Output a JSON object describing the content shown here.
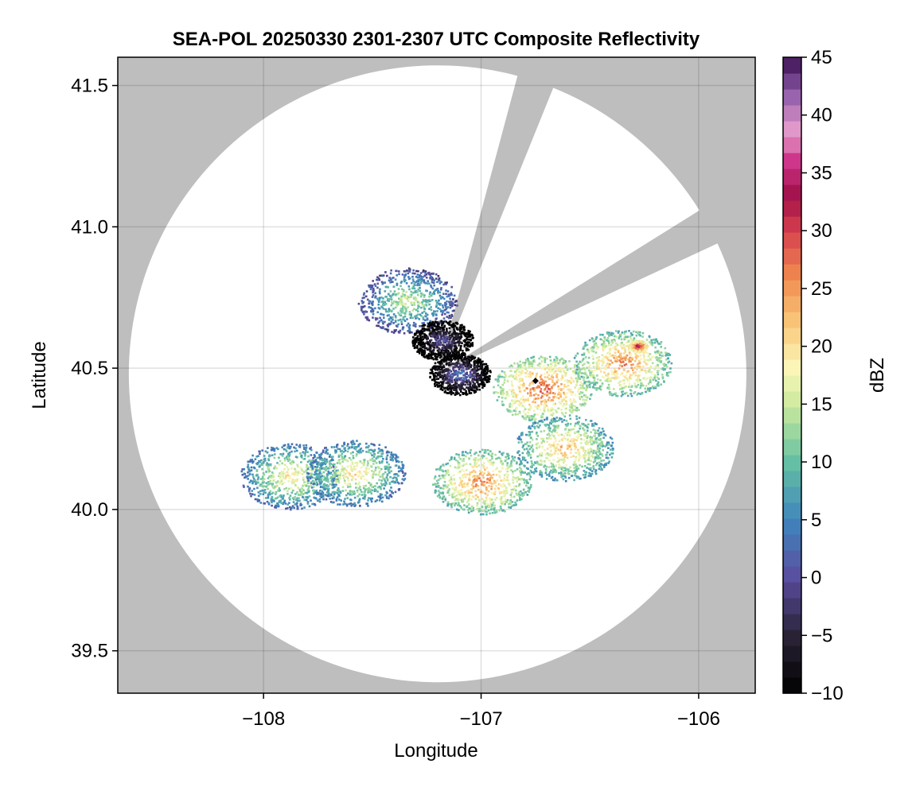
{
  "chart_data": {
    "type": "heatmap",
    "title": "SEA-POL 20250330 2301-2307 UTC Composite Reflectivity",
    "xlabel": "Longitude",
    "ylabel": "Latitude",
    "xlim": [
      -108.67,
      -105.74
    ],
    "ylim": [
      39.35,
      41.6
    ],
    "xticks": [
      -108,
      -107,
      -106
    ],
    "xtick_labels": [
      "−108",
      "−107",
      "−106"
    ],
    "yticks": [
      39.5,
      40.0,
      40.5,
      41.0,
      41.5
    ],
    "ytick_labels": [
      "39.5",
      "40.0",
      "40.5",
      "41.0",
      "41.5"
    ],
    "grid": true,
    "colorbar": {
      "label": "dBZ",
      "range": [
        -10,
        45
      ],
      "ticks": [
        -10,
        -5,
        0,
        5,
        10,
        15,
        20,
        25,
        30,
        35,
        40,
        45
      ],
      "tick_labels": [
        "−10",
        "−5",
        "0",
        "5",
        "10",
        "15",
        "20",
        "25",
        "30",
        "35",
        "40",
        "45"
      ],
      "bands": 40,
      "colormap": "spectral-like",
      "stops": [
        {
          "v": -10,
          "c": "#000000"
        },
        {
          "v": -5,
          "c": "#2a2336"
        },
        {
          "v": 0,
          "c": "#5a4c9e"
        },
        {
          "v": 5,
          "c": "#3f86bd"
        },
        {
          "v": 10,
          "c": "#65c0a4"
        },
        {
          "v": 15,
          "c": "#ccea9c"
        },
        {
          "v": 18,
          "c": "#fbf7bb"
        },
        {
          "v": 22,
          "c": "#f9c879"
        },
        {
          "v": 26,
          "c": "#f08a4f"
        },
        {
          "v": 30,
          "c": "#d6404e"
        },
        {
          "v": 33,
          "c": "#a01048"
        },
        {
          "v": 36,
          "c": "#cc3389"
        },
        {
          "v": 38.5,
          "c": "#e89ecd"
        },
        {
          "v": 42,
          "c": "#8e5ba8"
        },
        {
          "v": 45,
          "c": "#3b0f52"
        }
      ]
    },
    "radar": {
      "center": [
        -107.2,
        40.48
      ],
      "coverage_boundary": "circular",
      "blocked_sectors": [
        "north (approx. 15°–22° azimuth)",
        "northeast (approx. 58°–65° azimuth)"
      ],
      "no_coverage_color": "#bebebe"
    },
    "precip_cells": [
      {
        "lon": -106.72,
        "lat": 40.43,
        "peak_dbz": 32
      },
      {
        "lon": -106.35,
        "lat": 40.52,
        "peak_dbz": 30
      },
      {
        "lon": -106.62,
        "lat": 40.22,
        "peak_dbz": 27
      },
      {
        "lon": -107.0,
        "lat": 40.1,
        "peak_dbz": 30
      },
      {
        "lon": -107.88,
        "lat": 40.12,
        "peak_dbz": 24
      },
      {
        "lon": -107.58,
        "lat": 40.13,
        "peak_dbz": 24
      },
      {
        "lon": -107.34,
        "lat": 40.74,
        "peak_dbz": 20
      },
      {
        "lon": -107.18,
        "lat": 40.6,
        "peak_dbz": 5
      },
      {
        "lon": -107.1,
        "lat": 40.48,
        "peak_dbz": 8
      },
      {
        "lon": -106.28,
        "lat": 40.58,
        "peak_dbz": 38
      }
    ],
    "markers": [
      {
        "lon": -106.75,
        "lat": 40.455,
        "shape": "diamond",
        "color": "#000000"
      }
    ]
  }
}
